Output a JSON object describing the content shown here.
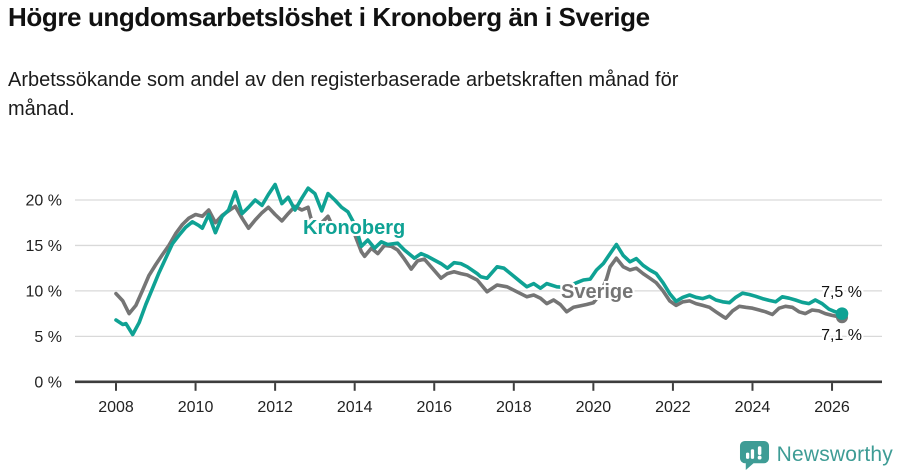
{
  "header": {
    "title": "Högre ungdomsarbetslöshet i Kronoberg än i Sverige",
    "subtitle": "Arbetssökande som andel av den registerbaserade arbetskraften månad för\nmånad."
  },
  "chart_data": {
    "type": "line",
    "title": "Högre ungdomsarbetslöshet i Kronoberg än i Sverige",
    "xlabel": "",
    "ylabel": "",
    "grid": "horizontal",
    "legend": "inline-labels",
    "grid_color": "#d9d9d9",
    "axis_color": "#3d3d3d",
    "tick_label_color": "#222222",
    "x_axis": {
      "ticks": [
        2008,
        2010,
        2012,
        2014,
        2016,
        2018,
        2020,
        2022,
        2024,
        2026
      ],
      "data_start": 2008.0,
      "data_end": 2026.25
    },
    "y_axis": {
      "ticks": [
        {
          "value": 0,
          "label": "0 %"
        },
        {
          "value": 5,
          "label": "5 %"
        },
        {
          "value": 10,
          "label": "10 %"
        },
        {
          "value": 15,
          "label": "15 %"
        },
        {
          "value": 20,
          "label": "20 %"
        }
      ],
      "range": [
        0,
        22
      ]
    },
    "series": [
      {
        "name": "Sverige",
        "color": "#757575",
        "end_label": "7,1 %",
        "end_value": 7.1,
        "points": [
          [
            2008.0,
            9.7
          ],
          [
            2008.17,
            8.9
          ],
          [
            2008.33,
            7.5
          ],
          [
            2008.5,
            8.4
          ],
          [
            2008.67,
            10.1
          ],
          [
            2008.83,
            11.7
          ],
          [
            2009.0,
            12.9
          ],
          [
            2009.17,
            14.0
          ],
          [
            2009.33,
            15.0
          ],
          [
            2009.5,
            16.3
          ],
          [
            2009.67,
            17.3
          ],
          [
            2009.83,
            18.0
          ],
          [
            2010.0,
            18.4
          ],
          [
            2010.17,
            18.2
          ],
          [
            2010.33,
            18.9
          ],
          [
            2010.5,
            17.5
          ],
          [
            2010.67,
            18.3
          ],
          [
            2010.83,
            18.8
          ],
          [
            2011.0,
            19.3
          ],
          [
            2011.17,
            18.0
          ],
          [
            2011.33,
            16.9
          ],
          [
            2011.5,
            17.8
          ],
          [
            2011.67,
            18.6
          ],
          [
            2011.83,
            19.2
          ],
          [
            2012.0,
            18.4
          ],
          [
            2012.17,
            17.7
          ],
          [
            2012.33,
            18.5
          ],
          [
            2012.5,
            19.3
          ],
          [
            2012.67,
            18.9
          ],
          [
            2012.83,
            19.2
          ],
          [
            2013.0,
            16.3
          ],
          [
            2013.17,
            17.5
          ],
          [
            2013.33,
            18.2
          ],
          [
            2013.5,
            16.6
          ],
          [
            2013.67,
            17.1
          ],
          [
            2013.83,
            16.7
          ],
          [
            2014.0,
            16.2
          ],
          [
            2014.08,
            15.3
          ],
          [
            2014.17,
            14.3
          ],
          [
            2014.25,
            13.8
          ],
          [
            2014.42,
            14.7
          ],
          [
            2014.58,
            14.1
          ],
          [
            2014.75,
            15.0
          ],
          [
            2014.92,
            14.9
          ],
          [
            2015.08,
            14.5
          ],
          [
            2015.25,
            13.5
          ],
          [
            2015.42,
            12.4
          ],
          [
            2015.58,
            13.3
          ],
          [
            2015.75,
            13.5
          ],
          [
            2015.92,
            12.65
          ],
          [
            2016.17,
            11.4
          ],
          [
            2016.33,
            11.9
          ],
          [
            2016.5,
            12.1
          ],
          [
            2016.67,
            11.9
          ],
          [
            2016.83,
            11.75
          ],
          [
            2017.08,
            11.2
          ],
          [
            2017.33,
            9.9
          ],
          [
            2017.58,
            10.65
          ],
          [
            2017.83,
            10.45
          ],
          [
            2018.08,
            9.9
          ],
          [
            2018.33,
            9.35
          ],
          [
            2018.5,
            9.55
          ],
          [
            2018.67,
            9.2
          ],
          [
            2018.83,
            8.6
          ],
          [
            2019.0,
            9.0
          ],
          [
            2019.17,
            8.5
          ],
          [
            2019.33,
            7.7
          ],
          [
            2019.5,
            8.2
          ],
          [
            2019.67,
            8.35
          ],
          [
            2019.83,
            8.5
          ],
          [
            2020.0,
            8.7
          ],
          [
            2020.17,
            9.6
          ],
          [
            2020.33,
            11.3
          ],
          [
            2020.42,
            12.65
          ],
          [
            2020.58,
            13.6
          ],
          [
            2020.75,
            12.65
          ],
          [
            2020.92,
            12.3
          ],
          [
            2021.08,
            12.5
          ],
          [
            2021.25,
            11.9
          ],
          [
            2021.42,
            11.4
          ],
          [
            2021.58,
            10.9
          ],
          [
            2021.75,
            10.0
          ],
          [
            2021.92,
            8.9
          ],
          [
            2022.08,
            8.4
          ],
          [
            2022.25,
            8.8
          ],
          [
            2022.42,
            8.9
          ],
          [
            2022.58,
            8.6
          ],
          [
            2022.75,
            8.4
          ],
          [
            2022.92,
            8.2
          ],
          [
            2023.08,
            7.7
          ],
          [
            2023.25,
            7.2
          ],
          [
            2023.33,
            7.0
          ],
          [
            2023.5,
            7.8
          ],
          [
            2023.67,
            8.3
          ],
          [
            2023.83,
            8.2
          ],
          [
            2024.0,
            8.1
          ],
          [
            2024.17,
            7.9
          ],
          [
            2024.33,
            7.7
          ],
          [
            2024.5,
            7.4
          ],
          [
            2024.67,
            8.1
          ],
          [
            2024.83,
            8.3
          ],
          [
            2025.0,
            8.2
          ],
          [
            2025.17,
            7.7
          ],
          [
            2025.33,
            7.5
          ],
          [
            2025.5,
            7.9
          ],
          [
            2025.67,
            7.8
          ],
          [
            2025.83,
            7.5
          ],
          [
            2026.0,
            7.3
          ],
          [
            2026.12,
            7.2
          ],
          [
            2026.25,
            7.1
          ]
        ]
      },
      {
        "name": "Kronoberg",
        "color": "#0FA294",
        "end_label": "7,5 %",
        "end_value": 7.5,
        "points": [
          [
            2008.0,
            6.8
          ],
          [
            2008.17,
            6.3
          ],
          [
            2008.25,
            6.4
          ],
          [
            2008.42,
            5.2
          ],
          [
            2008.58,
            6.5
          ],
          [
            2008.75,
            8.5
          ],
          [
            2008.92,
            10.3
          ],
          [
            2009.08,
            12.0
          ],
          [
            2009.25,
            13.6
          ],
          [
            2009.42,
            15.2
          ],
          [
            2009.58,
            16.1
          ],
          [
            2009.75,
            17.0
          ],
          [
            2009.92,
            17.6
          ],
          [
            2010.08,
            17.2
          ],
          [
            2010.17,
            16.9
          ],
          [
            2010.33,
            18.4
          ],
          [
            2010.5,
            16.4
          ],
          [
            2010.67,
            18.2
          ],
          [
            2010.83,
            18.9
          ],
          [
            2011.0,
            20.9
          ],
          [
            2011.17,
            18.5
          ],
          [
            2011.33,
            19.2
          ],
          [
            2011.5,
            20.0
          ],
          [
            2011.67,
            19.4
          ],
          [
            2011.83,
            20.6
          ],
          [
            2012.0,
            21.7
          ],
          [
            2012.17,
            19.6
          ],
          [
            2012.33,
            20.3
          ],
          [
            2012.5,
            18.9
          ],
          [
            2012.67,
            20.2
          ],
          [
            2012.83,
            21.3
          ],
          [
            2013.0,
            20.7
          ],
          [
            2013.17,
            18.8
          ],
          [
            2013.33,
            20.7
          ],
          [
            2013.5,
            20.0
          ],
          [
            2013.67,
            19.2
          ],
          [
            2013.83,
            18.7
          ],
          [
            2014.0,
            17.3
          ],
          [
            2014.08,
            16.2
          ],
          [
            2014.17,
            14.9
          ],
          [
            2014.33,
            15.6
          ],
          [
            2014.5,
            14.7
          ],
          [
            2014.67,
            15.4
          ],
          [
            2014.83,
            15.1
          ],
          [
            2015.08,
            15.25
          ],
          [
            2015.25,
            14.5
          ],
          [
            2015.5,
            13.6
          ],
          [
            2015.67,
            14.1
          ],
          [
            2015.83,
            13.8
          ],
          [
            2016.0,
            13.4
          ],
          [
            2016.17,
            13.0
          ],
          [
            2016.33,
            12.5
          ],
          [
            2016.5,
            13.1
          ],
          [
            2016.67,
            13.0
          ],
          [
            2016.83,
            12.65
          ],
          [
            2017.08,
            11.9
          ],
          [
            2017.17,
            11.55
          ],
          [
            2017.33,
            11.4
          ],
          [
            2017.58,
            12.65
          ],
          [
            2017.75,
            12.5
          ],
          [
            2017.92,
            11.9
          ],
          [
            2018.17,
            11.0
          ],
          [
            2018.33,
            10.45
          ],
          [
            2018.5,
            10.8
          ],
          [
            2018.67,
            10.3
          ],
          [
            2018.83,
            10.8
          ],
          [
            2019.08,
            10.45
          ],
          [
            2019.25,
            10.4
          ],
          [
            2019.42,
            10.6
          ],
          [
            2019.58,
            10.9
          ],
          [
            2019.75,
            11.2
          ],
          [
            2019.92,
            11.3
          ],
          [
            2020.08,
            12.3
          ],
          [
            2020.25,
            13.0
          ],
          [
            2020.42,
            14.1
          ],
          [
            2020.58,
            15.1
          ],
          [
            2020.75,
            13.9
          ],
          [
            2020.92,
            13.2
          ],
          [
            2021.08,
            13.55
          ],
          [
            2021.25,
            12.8
          ],
          [
            2021.42,
            12.3
          ],
          [
            2021.58,
            11.9
          ],
          [
            2021.75,
            10.9
          ],
          [
            2021.92,
            9.7
          ],
          [
            2022.08,
            8.85
          ],
          [
            2022.25,
            9.3
          ],
          [
            2022.42,
            9.55
          ],
          [
            2022.58,
            9.3
          ],
          [
            2022.75,
            9.15
          ],
          [
            2022.92,
            9.4
          ],
          [
            2023.08,
            9.0
          ],
          [
            2023.25,
            8.8
          ],
          [
            2023.42,
            8.7
          ],
          [
            2023.58,
            9.3
          ],
          [
            2023.75,
            9.75
          ],
          [
            2023.92,
            9.6
          ],
          [
            2024.08,
            9.4
          ],
          [
            2024.25,
            9.15
          ],
          [
            2024.42,
            8.95
          ],
          [
            2024.58,
            8.8
          ],
          [
            2024.75,
            9.35
          ],
          [
            2024.92,
            9.2
          ],
          [
            2025.08,
            9.0
          ],
          [
            2025.25,
            8.75
          ],
          [
            2025.42,
            8.6
          ],
          [
            2025.58,
            9.0
          ],
          [
            2025.75,
            8.6
          ],
          [
            2025.92,
            8.0
          ],
          [
            2026.08,
            7.7
          ],
          [
            2026.25,
            7.5
          ]
        ]
      }
    ]
  },
  "footer": {
    "brand": "Newsworthy",
    "brand_color": "#3E9C95"
  }
}
